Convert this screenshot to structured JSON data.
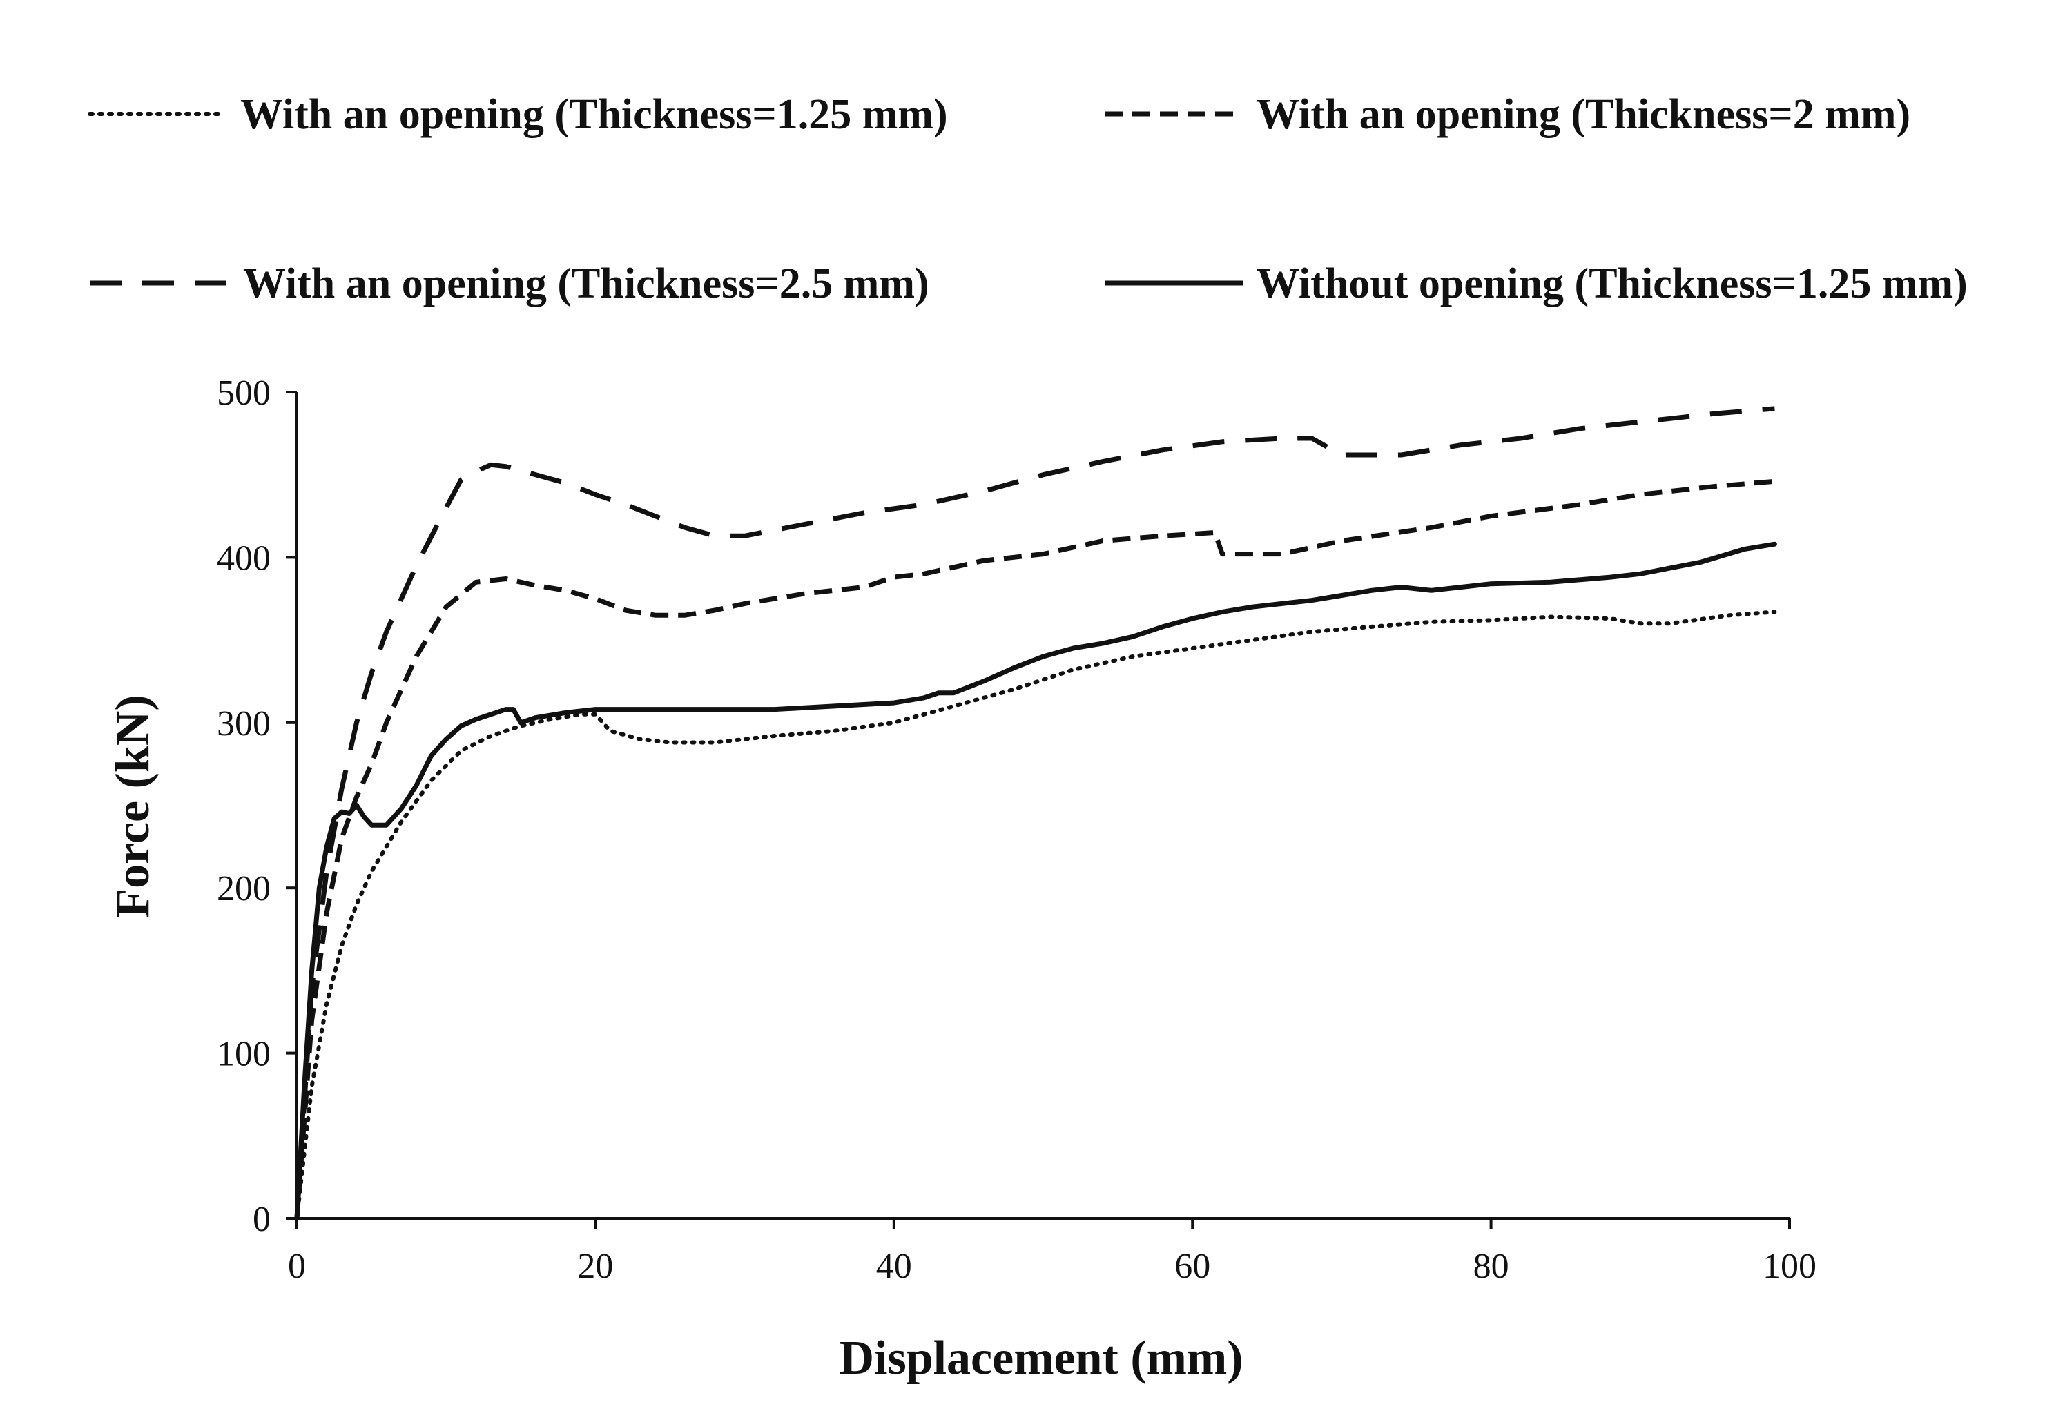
{
  "chart_data": {
    "type": "line",
    "title": "",
    "xlabel": "Displacement (mm)",
    "ylabel": "Force (kN)",
    "xlim": [
      0,
      100
    ],
    "ylim": [
      0,
      500
    ],
    "xticks": [
      0,
      20,
      40,
      60,
      80,
      100
    ],
    "yticks": [
      0,
      100,
      200,
      300,
      400,
      500
    ],
    "grid": false,
    "legend_position": "top",
    "series": [
      {
        "name": "With an opening (Thickness=1.25 mm)",
        "style": "dotted",
        "x": [
          0,
          0.5,
          1,
          2,
          3,
          4,
          5,
          7,
          9,
          11,
          13,
          15,
          17,
          19,
          20,
          21,
          23,
          25,
          28,
          32,
          36,
          40,
          44,
          48,
          52,
          56,
          60,
          64,
          68,
          72,
          76,
          80,
          84,
          88,
          90,
          92,
          96,
          99
        ],
        "y": [
          0,
          40,
          80,
          130,
          165,
          190,
          210,
          240,
          265,
          283,
          292,
          298,
          302,
          305,
          305,
          295,
          290,
          288,
          288,
          292,
          295,
          300,
          310,
          320,
          332,
          340,
          345,
          350,
          355,
          358,
          361,
          362,
          364,
          363,
          360,
          360,
          365,
          367
        ]
      },
      {
        "name": "With an opening (Thickness=2 mm)",
        "style": "dashed",
        "x": [
          0,
          0.5,
          1,
          2,
          3,
          4,
          5,
          6,
          8,
          10,
          12,
          14,
          16,
          18,
          20,
          22,
          24,
          26,
          28,
          30,
          34,
          38,
          40,
          42,
          46,
          50,
          54,
          58,
          61.5,
          62,
          66,
          70,
          76,
          80,
          86,
          90,
          95,
          99
        ],
        "y": [
          0,
          60,
          120,
          185,
          230,
          255,
          275,
          300,
          340,
          370,
          385,
          387,
          383,
          380,
          375,
          368,
          365,
          365,
          368,
          372,
          378,
          382,
          388,
          390,
          398,
          402,
          410,
          413,
          415,
          402,
          402,
          410,
          418,
          425,
          432,
          438,
          443,
          446
        ]
      },
      {
        "name": "With an opening (Thickness=2.5 mm)",
        "style": "long-dashed",
        "x": [
          0,
          0.5,
          1,
          2,
          3,
          4,
          5,
          6,
          8,
          10,
          11,
          12,
          13,
          14,
          16,
          18,
          20,
          22,
          24,
          26,
          28,
          30,
          34,
          38,
          42,
          46,
          50,
          54,
          58,
          62,
          66,
          68,
          70,
          74,
          78,
          82,
          86,
          90,
          95,
          99
        ],
        "y": [
          0,
          70,
          140,
          210,
          260,
          300,
          330,
          355,
          395,
          430,
          447,
          452,
          456,
          455,
          450,
          445,
          438,
          432,
          425,
          418,
          413,
          413,
          420,
          427,
          432,
          440,
          450,
          458,
          465,
          470,
          472,
          472,
          462,
          462,
          468,
          472,
          478,
          482,
          487,
          490
        ]
      },
      {
        "name": "Without opening (Thickness=1.25 mm)",
        "style": "solid",
        "x": [
          0,
          0.5,
          1,
          1.5,
          2,
          2.5,
          3,
          3.5,
          4,
          4.5,
          5,
          6,
          7,
          8,
          9,
          10,
          11,
          12,
          13,
          14,
          14.5,
          15,
          16,
          18,
          20,
          24,
          28,
          32,
          36,
          40,
          42,
          43,
          44,
          46,
          48,
          50,
          52,
          54,
          56,
          58,
          60,
          62,
          64,
          66,
          68,
          70,
          72,
          74,
          76,
          78,
          80,
          84,
          88,
          90,
          94,
          97,
          99
        ],
        "y": [
          0,
          80,
          150,
          200,
          225,
          242,
          246,
          245,
          250,
          243,
          238,
          238,
          248,
          262,
          280,
          290,
          298,
          302,
          305,
          308,
          308,
          300,
          303,
          306,
          308,
          308,
          308,
          308,
          310,
          312,
          315,
          318,
          318,
          325,
          333,
          340,
          345,
          348,
          352,
          358,
          363,
          367,
          370,
          372,
          374,
          377,
          380,
          382,
          380,
          382,
          384,
          385,
          388,
          390,
          397,
          405,
          408
        ]
      }
    ]
  }
}
